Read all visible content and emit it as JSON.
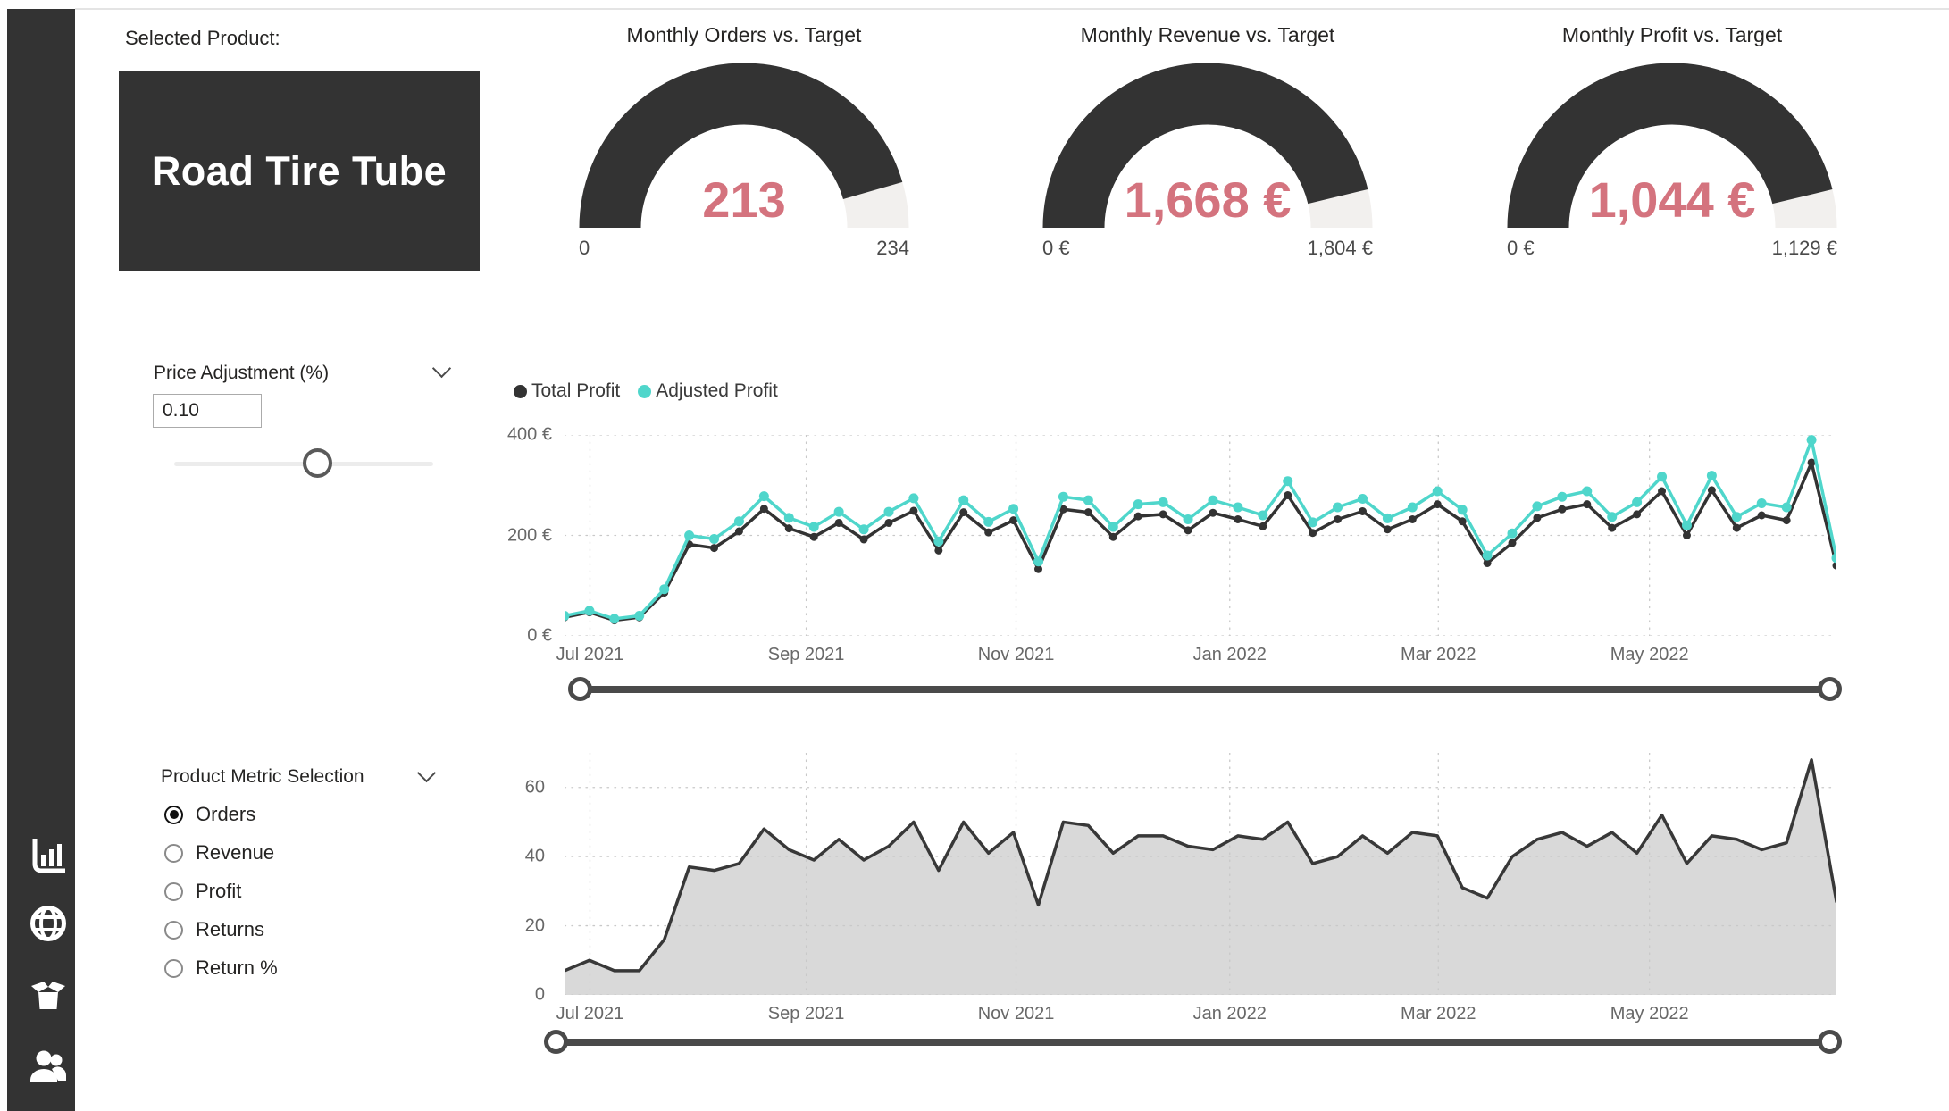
{
  "sidebar": {
    "icons": [
      {
        "name": "bar-chart-icon"
      },
      {
        "name": "globe-icon"
      },
      {
        "name": "package-icon"
      },
      {
        "name": "people-icon"
      }
    ]
  },
  "product": {
    "label": "Selected Product:",
    "name": "Road Tire Tube"
  },
  "gauges": [
    {
      "title": "Monthly Orders vs. Target",
      "value": "213",
      "value_num": 213,
      "min_label": "0",
      "max_label": "234",
      "max_num": 234
    },
    {
      "title": "Monthly Revenue vs. Target",
      "value": "1,668 €",
      "value_num": 1668,
      "min_label": "0 €",
      "max_label": "1,804 €",
      "max_num": 1804
    },
    {
      "title": "Monthly Profit vs. Target",
      "value": "1,044 €",
      "value_num": 1044,
      "min_label": "0 €",
      "max_label": "1,129 €",
      "max_num": 1129
    }
  ],
  "price_adjustment": {
    "label": "Price Adjustment (%)",
    "value": "0.10",
    "slider_fraction": 0.555
  },
  "metric_selection": {
    "label": "Product Metric Selection",
    "options": [
      {
        "label": "Orders",
        "selected": true
      },
      {
        "label": "Revenue",
        "selected": false
      },
      {
        "label": "Profit",
        "selected": false
      },
      {
        "label": "Returns",
        "selected": false
      },
      {
        "label": "Return %",
        "selected": false
      }
    ]
  },
  "colors": {
    "dark": "#333333",
    "accent_pink": "#d4737e",
    "teal": "#4fd6cb",
    "gauge_track": "#f2f0ee",
    "area_fill": "#d9d9d9",
    "grid": "#c9c9c9"
  },
  "chart_data": [
    {
      "type": "line",
      "name": "profit-vs-adjusted-profit-weekly",
      "legend_position": "top-left",
      "grid": true,
      "ylim": [
        0,
        400
      ],
      "y_ticks": [
        {
          "label": "0 €",
          "value": 0
        },
        {
          "label": "200 €",
          "value": 200
        },
        {
          "label": "400 €",
          "value": 400
        }
      ],
      "x_ticks": [
        {
          "label": "Jul 2021",
          "f": 0.02
        },
        {
          "label": "Sep 2021",
          "f": 0.19
        },
        {
          "label": "Nov 2021",
          "f": 0.355
        },
        {
          "label": "Jan 2022",
          "f": 0.523
        },
        {
          "label": "Mar 2022",
          "f": 0.687
        },
        {
          "label": "May 2022",
          "f": 0.853
        }
      ],
      "series": [
        {
          "name": "Total Profit",
          "color": "#333333",
          "values": [
            37,
            47,
            31,
            37,
            86,
            182,
            175,
            208,
            253,
            214,
            197,
            225,
            192,
            225,
            249,
            170,
            246,
            206,
            230,
            133,
            252,
            246,
            197,
            238,
            242,
            210,
            245,
            232,
            218,
            280,
            205,
            232,
            248,
            212,
            232,
            262,
            228,
            145,
            185,
            235,
            252,
            262,
            215,
            242,
            288,
            200,
            290,
            215,
            240,
            230,
            345,
            140
          ]
        },
        {
          "name": "Adjusted Profit",
          "color": "#4fd6cb",
          "values": [
            40,
            50,
            34,
            40,
            93,
            200,
            193,
            228,
            278,
            235,
            217,
            247,
            212,
            247,
            274,
            188,
            270,
            227,
            253,
            148,
            277,
            270,
            217,
            262,
            266,
            232,
            270,
            256,
            240,
            308,
            226,
            256,
            273,
            234,
            256,
            288,
            251,
            160,
            204,
            258,
            277,
            288,
            237,
            266,
            317,
            220,
            319,
            237,
            264,
            256,
            390,
            155
          ]
        }
      ],
      "range_slider": {
        "start": 0,
        "end": 1
      }
    },
    {
      "type": "area",
      "name": "selected-metric-weekly",
      "grid": true,
      "ylim": [
        0,
        70
      ],
      "y_ticks": [
        {
          "label": "0",
          "value": 0
        },
        {
          "label": "20",
          "value": 20
        },
        {
          "label": "40",
          "value": 40
        },
        {
          "label": "60",
          "value": 60
        }
      ],
      "x_ticks": [
        {
          "label": "Jul 2021",
          "f": 0.02
        },
        {
          "label": "Sep 2021",
          "f": 0.19
        },
        {
          "label": "Nov 2021",
          "f": 0.355
        },
        {
          "label": "Jan 2022",
          "f": 0.523
        },
        {
          "label": "Mar 2022",
          "f": 0.687
        },
        {
          "label": "May 2022",
          "f": 0.853
        }
      ],
      "series": [
        {
          "name": "Orders",
          "color": "#383838",
          "fill": "#d9d9d9",
          "values": [
            7,
            10,
            7,
            7,
            16,
            37,
            36,
            38,
            48,
            42,
            39,
            45,
            39,
            43,
            50,
            36,
            50,
            41,
            47,
            26,
            50,
            49,
            41,
            46,
            46,
            43,
            42,
            46,
            45,
            50,
            38,
            40,
            46,
            41,
            47,
            46,
            31,
            28,
            40,
            45,
            47,
            43,
            47,
            41,
            52,
            38,
            46,
            45,
            42,
            44,
            68,
            27
          ]
        }
      ],
      "range_slider": {
        "start": 0,
        "end": 1
      }
    }
  ]
}
